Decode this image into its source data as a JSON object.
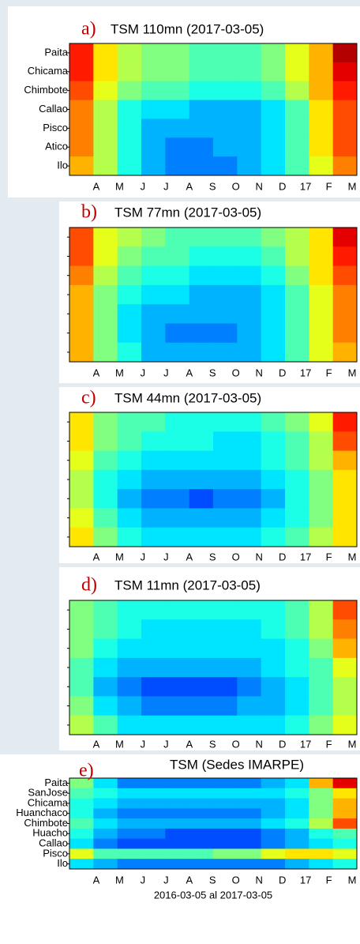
{
  "chart_data": [
    {
      "type": "heatmap",
      "label": "a)",
      "title": "TSM 110mn (2017-03-05)",
      "colormap": "jet",
      "clim": [
        0,
        10
      ],
      "rows": [
        "Paita",
        "Chicama",
        "Chimbote",
        "Callao",
        "Pisco",
        "Atico",
        "Ilo"
      ],
      "categories": [
        "A",
        "M",
        "J",
        "J",
        "A",
        "S",
        "O",
        "N",
        "D",
        "17",
        "F",
        "M"
      ],
      "values": [
        [
          8.5,
          6.5,
          5.5,
          5,
          5,
          4.5,
          4.5,
          4.5,
          5,
          6,
          7,
          9.5
        ],
        [
          8.5,
          6.5,
          5.5,
          5,
          5,
          4.5,
          4.5,
          4.5,
          5,
          6,
          7,
          9
        ],
        [
          8,
          6,
          5,
          4.5,
          4.5,
          4,
          4,
          4,
          4.5,
          5.5,
          7,
          8.5
        ],
        [
          7.5,
          5.5,
          4,
          3.5,
          3.5,
          3,
          3,
          3,
          3.5,
          4.5,
          6.5,
          8
        ],
        [
          7.5,
          5.5,
          4,
          3,
          3,
          3,
          3,
          3,
          3.5,
          4.5,
          6.5,
          8
        ],
        [
          7.5,
          5.5,
          4,
          3,
          2.5,
          2.5,
          3,
          3,
          3.5,
          4.5,
          6.5,
          8
        ],
        [
          7,
          5.5,
          4,
          3,
          2.5,
          2.5,
          2.5,
          3,
          3.5,
          4.5,
          6,
          7.5
        ]
      ]
    },
    {
      "type": "heatmap",
      "label": "b)",
      "title": "TSM 77mn (2017-03-05)",
      "colormap": "jet",
      "clim": [
        0,
        10
      ],
      "rows": [
        null,
        null,
        null,
        null,
        null,
        null,
        null
      ],
      "categories": [
        "A",
        "M",
        "J",
        "J",
        "A",
        "S",
        "O",
        "N",
        "D",
        "17",
        "F",
        "M"
      ],
      "values": [
        [
          8,
          6,
          5.5,
          5,
          4.5,
          4.5,
          4.5,
          4.5,
          5,
          5.5,
          6.5,
          9
        ],
        [
          8,
          6,
          5,
          4.5,
          4.5,
          4,
          4,
          4,
          4.5,
          5.5,
          6.5,
          8.5
        ],
        [
          7.5,
          5.5,
          4.5,
          4,
          4,
          3.5,
          3.5,
          3.5,
          4,
          5,
          6.5,
          8
        ],
        [
          7,
          5,
          4,
          3.5,
          3.5,
          3,
          3,
          3,
          3.5,
          4.5,
          6,
          7.5
        ],
        [
          7,
          5,
          3.5,
          3,
          3,
          3,
          3,
          3,
          3.5,
          4.5,
          6,
          7.5
        ],
        [
          7,
          5,
          3.5,
          3,
          2.5,
          2.5,
          2.5,
          3,
          3.5,
          4.5,
          6,
          7.5
        ],
        [
          7,
          5,
          4,
          3,
          3,
          3,
          3,
          3,
          3.5,
          4.5,
          6,
          7
        ]
      ]
    },
    {
      "type": "heatmap",
      "label": "c)",
      "title": "TSM 44mn (2017-03-05)",
      "colormap": "jet",
      "clim": [
        0,
        10
      ],
      "rows": [
        null,
        null,
        null,
        null,
        null,
        null,
        null
      ],
      "categories": [
        "A",
        "M",
        "J",
        "J",
        "A",
        "S",
        "O",
        "N",
        "D",
        "17",
        "F",
        "M"
      ],
      "values": [
        [
          6.5,
          5,
          4.5,
          4.5,
          4,
          4,
          4,
          4,
          4.5,
          5,
          6,
          8.5
        ],
        [
          6.5,
          5,
          4.5,
          4,
          4,
          4,
          3.5,
          3.5,
          4,
          4.5,
          5.5,
          8
        ],
        [
          6,
          4.5,
          4,
          3.5,
          3.5,
          3.5,
          3.5,
          3.5,
          4,
          4.5,
          5.5,
          7
        ],
        [
          5.5,
          4,
          3.5,
          3,
          3,
          3,
          3,
          3,
          3.5,
          4,
          5,
          6.5
        ],
        [
          5.5,
          4,
          3,
          2.5,
          2.5,
          2,
          2.5,
          2.5,
          3,
          4,
          5,
          6.5
        ],
        [
          6,
          4.5,
          3.5,
          3,
          3,
          3,
          3,
          3,
          3.5,
          4,
          5,
          6.5
        ],
        [
          6.5,
          5,
          4,
          3.5,
          3.5,
          3.5,
          3.5,
          3.5,
          4,
          4.5,
          5.5,
          6.5
        ]
      ]
    },
    {
      "type": "heatmap",
      "label": "d)",
      "title": "TSM 11mn (2017-03-05)",
      "colormap": "jet",
      "clim": [
        0,
        10
      ],
      "rows": [
        null,
        null,
        null,
        null,
        null,
        null,
        null
      ],
      "categories": [
        "A",
        "M",
        "J",
        "J",
        "A",
        "S",
        "O",
        "N",
        "D",
        "17",
        "F",
        "M"
      ],
      "values": [
        [
          5,
          4.5,
          4,
          4,
          4,
          4,
          4,
          4,
          4,
          4.5,
          5.5,
          8
        ],
        [
          5,
          4.5,
          4,
          3.5,
          3.5,
          3.5,
          3.5,
          3.5,
          4,
          4.5,
          5.5,
          7.5
        ],
        [
          5,
          4,
          3.5,
          3.5,
          3.5,
          3.5,
          3.5,
          3.5,
          3.5,
          4,
          5,
          7
        ],
        [
          4.5,
          3.5,
          3,
          3,
          3,
          3,
          3,
          3,
          3.5,
          4,
          4.5,
          6
        ],
        [
          4.5,
          3,
          2.5,
          2,
          2,
          2,
          2,
          2.5,
          3,
          3.5,
          4.5,
          5.5
        ],
        [
          5,
          3.5,
          3,
          2.5,
          2.5,
          2.5,
          2.5,
          3,
          3,
          3.5,
          4.5,
          5.5
        ],
        [
          5.5,
          4.5,
          3.5,
          3.5,
          3.5,
          3.5,
          3.5,
          3.5,
          3.5,
          4,
          5,
          6
        ]
      ]
    },
    {
      "type": "heatmap",
      "label": "e)",
      "title": "TSM (Sedes IMARPE)",
      "xlabel": "2016-03-05 al 2017-03-05",
      "colormap": "jet",
      "clim": [
        0,
        10
      ],
      "rows": [
        "Paita",
        "SanJose",
        "Chicama",
        "Huanchaco",
        "Chimbote",
        "Huacho",
        "Callao",
        "Pisco",
        "Ilo"
      ],
      "categories": [
        "A",
        "M",
        "J",
        "J",
        "A",
        "S",
        "O",
        "N",
        "D",
        "17",
        "F",
        "M"
      ],
      "values": [
        [
          5,
          3.5,
          2.5,
          2.5,
          2.5,
          2.5,
          2.5,
          2.5,
          3,
          3.5,
          7,
          9
        ],
        [
          4.5,
          4,
          3.5,
          3.5,
          3.5,
          3.5,
          3.5,
          3.5,
          3.5,
          4,
          5,
          6.5
        ],
        [
          4,
          3.5,
          3,
          3,
          3,
          3,
          3,
          3,
          3,
          3.5,
          5,
          7
        ],
        [
          4,
          3,
          2.5,
          2.5,
          2.5,
          2.5,
          2.5,
          2.5,
          3,
          3.5,
          5,
          7
        ],
        [
          4.5,
          3.5,
          3,
          3,
          3,
          3,
          3,
          3,
          3.5,
          4,
          5.5,
          8
        ],
        [
          4,
          3,
          2.5,
          2.5,
          2,
          2,
          2,
          2,
          2.5,
          3,
          4,
          4.5
        ],
        [
          3.5,
          2.5,
          2,
          2,
          2,
          2,
          2,
          2,
          2.5,
          3,
          3.5,
          4
        ],
        [
          6,
          4.5,
          4.5,
          4.5,
          4.5,
          4.5,
          5,
          5,
          6,
          6.5,
          6.5,
          6
        ],
        [
          3.5,
          3,
          2.5,
          2.5,
          2.5,
          2.5,
          2.5,
          2.5,
          2.5,
          3,
          3.5,
          4
        ]
      ]
    }
  ]
}
